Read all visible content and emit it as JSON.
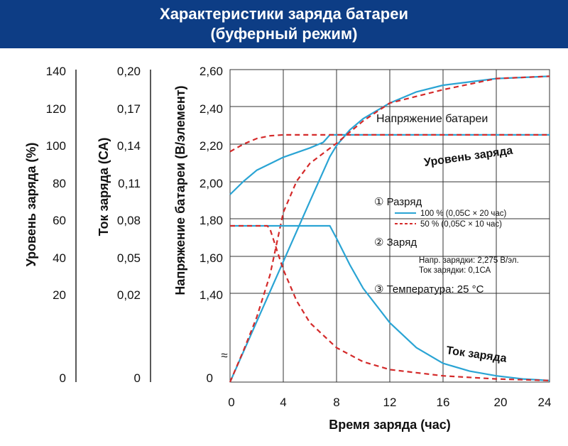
{
  "title": {
    "line1": "Характеристики заряда батареи",
    "line2": "(буферный режим)"
  },
  "colors": {
    "title_bg": "#0d3d85",
    "solid_series": "#2aa4d4",
    "dashed_series": "#d42a2a",
    "grid": "#333333"
  },
  "chart_data": {
    "type": "line",
    "xlabel": "Время заряда (час)",
    "x_ticks": [
      "0",
      "4",
      "8",
      "12",
      "16",
      "20",
      "24"
    ],
    "xlim": [
      0,
      24
    ],
    "y_axes": [
      {
        "name": "voltage",
        "label": "Напряжение батареи (В/элемент)",
        "ticks": [
          "2,60",
          "2,40",
          "2,20",
          "2,00",
          "1,80",
          "1,60",
          "1,40",
          "0"
        ]
      },
      {
        "name": "current",
        "label": "Ток заряда (СА)",
        "ticks": [
          "0,20",
          "0,17",
          "0,14",
          "0,11",
          "0,08",
          "0,05",
          "0,02",
          "0"
        ]
      },
      {
        "name": "charge_level",
        "label": "Уровень заряда (%)",
        "ticks": [
          "140",
          "120",
          "100",
          "80",
          "60",
          "40",
          "20",
          "0"
        ]
      }
    ],
    "grid": true,
    "axis_break": "≈",
    "curve_labels": {
      "voltage": "Напряжение батареи",
      "charge_level": "Уровень заряда",
      "current": "Ток заряда"
    },
    "legend": {
      "discharge_title": "① Разряд",
      "discharge_100": "100 % (0,05С × 20 час)",
      "discharge_50": "50 % (0,05С × 10 час)",
      "charge_title": "② Заряд",
      "charge_voltage": "Напр. зарядки: 2,275 В/эл.",
      "charge_current": "Ток зарядки: 0,1СА",
      "temperature": "③ Температура: 25 °С"
    },
    "series": [
      {
        "style": "solid",
        "quantity": "voltage",
        "x": [
          0,
          1,
          2,
          4,
          6,
          7,
          7.5,
          8,
          12,
          16,
          20,
          24
        ],
        "y": [
          1.93,
          2.0,
          2.06,
          2.13,
          2.18,
          2.21,
          2.25,
          2.25,
          2.25,
          2.25,
          2.25,
          2.25
        ]
      },
      {
        "style": "dashed",
        "quantity": "voltage",
        "x": [
          0,
          1,
          2,
          3,
          4,
          6,
          7.5,
          8,
          12,
          16,
          20,
          24
        ],
        "y": [
          2.16,
          2.2,
          2.23,
          2.245,
          2.25,
          2.25,
          2.25,
          2.25,
          2.25,
          2.25,
          2.25,
          2.25
        ]
      },
      {
        "style": "solid",
        "quantity": "charge_level",
        "x": [
          0,
          2,
          4,
          6,
          7.5,
          8,
          9,
          10,
          12,
          14,
          16,
          20,
          24
        ],
        "y": [
          0,
          27,
          54,
          81,
          101,
          106,
          113,
          118,
          125,
          130,
          133,
          136,
          137
        ]
      },
      {
        "style": "dashed",
        "quantity": "charge_level",
        "x": [
          0,
          1,
          2,
          3,
          4,
          5,
          6,
          8,
          10,
          12,
          16,
          20,
          24
        ],
        "y": [
          0,
          14,
          29,
          48,
          76,
          90,
          98,
          107,
          117,
          125,
          131,
          136,
          137
        ]
      },
      {
        "style": "solid",
        "quantity": "current",
        "x": [
          0,
          6,
          7.5,
          8,
          9,
          10,
          12,
          14,
          16,
          18,
          20,
          22,
          24
        ],
        "y": [
          0.1,
          0.1,
          0.1,
          0.092,
          0.075,
          0.06,
          0.038,
          0.022,
          0.012,
          0.007,
          0.004,
          0.002,
          0.001
        ]
      },
      {
        "style": "dashed",
        "quantity": "current",
        "x": [
          0,
          2.8,
          3,
          3.5,
          4,
          5,
          6,
          8,
          10,
          12,
          16,
          20,
          24
        ],
        "y": [
          0.1,
          0.1,
          0.098,
          0.085,
          0.072,
          0.052,
          0.038,
          0.022,
          0.013,
          0.008,
          0.004,
          0.002,
          0.001
        ]
      }
    ]
  }
}
